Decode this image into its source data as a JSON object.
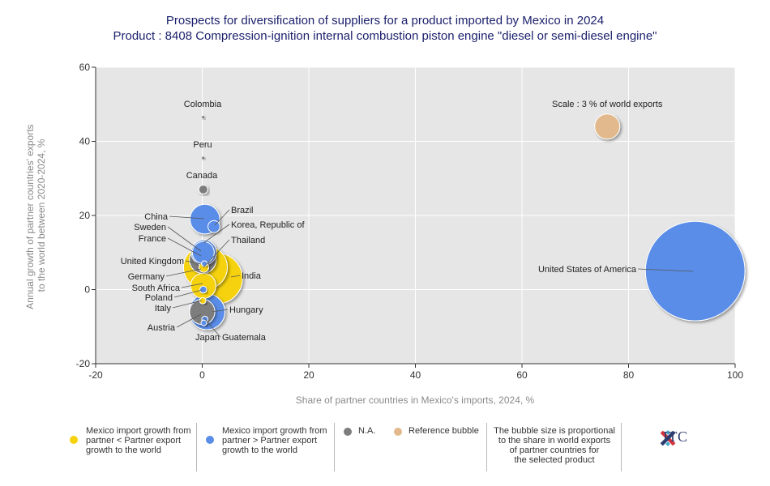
{
  "chart_data": {
    "type": "scatter",
    "title": "Prospects for diversification of suppliers for a product imported by Mexico in 2024",
    "subtitle": "Product : 8408 Compression-ignition internal combustion piston engine \"diesel or semi-diesel engine\"",
    "xlabel": "Share of partner countries in Mexico's imports, 2024, %",
    "ylabel": "Annual growth of partner countries' exports to the world between 2020-2024, %",
    "xlim": [
      -20,
      100
    ],
    "ylim": [
      -20,
      60
    ],
    "xticks": [
      "-20",
      "0",
      "20",
      "40",
      "60",
      "80",
      "100"
    ],
    "yticks": [
      "60",
      "40",
      "20",
      "0",
      "-20"
    ],
    "grid": true,
    "colors": {
      "yellow": "#f5d20a",
      "blue": "#5a8de8",
      "gray": "#7d7d7d",
      "reference": "#e2b98c"
    },
    "points": [
      {
        "name": "United States of America",
        "x": 92.5,
        "y": 5,
        "size": 62,
        "cat": "blue"
      },
      {
        "name": "India",
        "x": 2.8,
        "y": 3,
        "size": 16,
        "cat": "yellow"
      },
      {
        "name": "Germany",
        "x": 0.6,
        "y": 6,
        "size": 12,
        "cat": "yellow"
      },
      {
        "name": "Hungary",
        "x": 0.9,
        "y": -6,
        "size": 8,
        "cat": "blue"
      },
      {
        "name": "China",
        "x": 0.5,
        "y": 19,
        "size": 5.5,
        "cat": "blue"
      },
      {
        "name": "United Kingdom",
        "x": 0.1,
        "y": 8,
        "size": 4.5,
        "cat": "gray"
      },
      {
        "name": "South Africa",
        "x": 0.2,
        "y": 1,
        "size": 4,
        "cat": "yellow"
      },
      {
        "name": "France",
        "x": 0.3,
        "y": 10,
        "size": 4,
        "cat": "blue"
      },
      {
        "name": "Austria",
        "x": 0.0,
        "y": -6,
        "size": 4,
        "cat": "gray"
      },
      {
        "name": "Sweden",
        "x": 0.2,
        "y": 10,
        "size": 3,
        "cat": "blue"
      },
      {
        "name": "Brazil",
        "x": 2.2,
        "y": 17,
        "size": 0.9,
        "cat": "blue"
      },
      {
        "name": "Thailand",
        "x": 0.3,
        "y": 6,
        "size": 0.6,
        "cat": "yellow"
      },
      {
        "name": "Canada",
        "x": 0.2,
        "y": 27,
        "size": 0.5,
        "cat": "gray"
      },
      {
        "name": "Poland",
        "x": 0.2,
        "y": 0,
        "size": 0.3,
        "cat": "blue"
      },
      {
        "name": "Italy",
        "x": 0.1,
        "y": -3,
        "size": 0.25,
        "cat": "yellow"
      },
      {
        "name": "Guatemala",
        "x": 0.5,
        "y": -8,
        "size": 0.25,
        "cat": "blue"
      },
      {
        "name": "Japan",
        "x": 0.3,
        "y": -9,
        "size": 0.2,
        "cat": "blue"
      },
      {
        "name": "Korea, Republic of",
        "x": 0.4,
        "y": 7,
        "size": 0.2,
        "cat": "blue"
      },
      {
        "name": "Peru",
        "x": 0.2,
        "y": 35.5,
        "size": 0.06,
        "cat": "gray"
      },
      {
        "name": "Colombia",
        "x": 0.2,
        "y": 46.5,
        "size": 0.06,
        "cat": "gray"
      }
    ],
    "reference_bubble": {
      "label": "Scale : 3 % of world exports",
      "x": 76,
      "y": 44,
      "size": 3
    }
  },
  "legend": {
    "items": [
      {
        "label_lines": [
          "Mexico import growth from",
          "partner < Partner export",
          "growth to the world"
        ],
        "color": "#f5d20a"
      },
      {
        "label_lines": [
          "Mexico import growth from",
          "partner > Partner export",
          "growth to the world"
        ],
        "color": "#5a8de8"
      },
      {
        "label_lines": [
          "N.A."
        ],
        "color": "#7d7d7d"
      },
      {
        "label_lines": [
          "Reference bubble"
        ],
        "color": "#e2b98c"
      },
      {
        "label_lines": [
          "The bubble size is proportional",
          "to the share in world exports",
          "of partner countries for",
          "the selected product"
        ],
        "color": ""
      }
    ]
  },
  "logo": {
    "text": "ITC"
  }
}
